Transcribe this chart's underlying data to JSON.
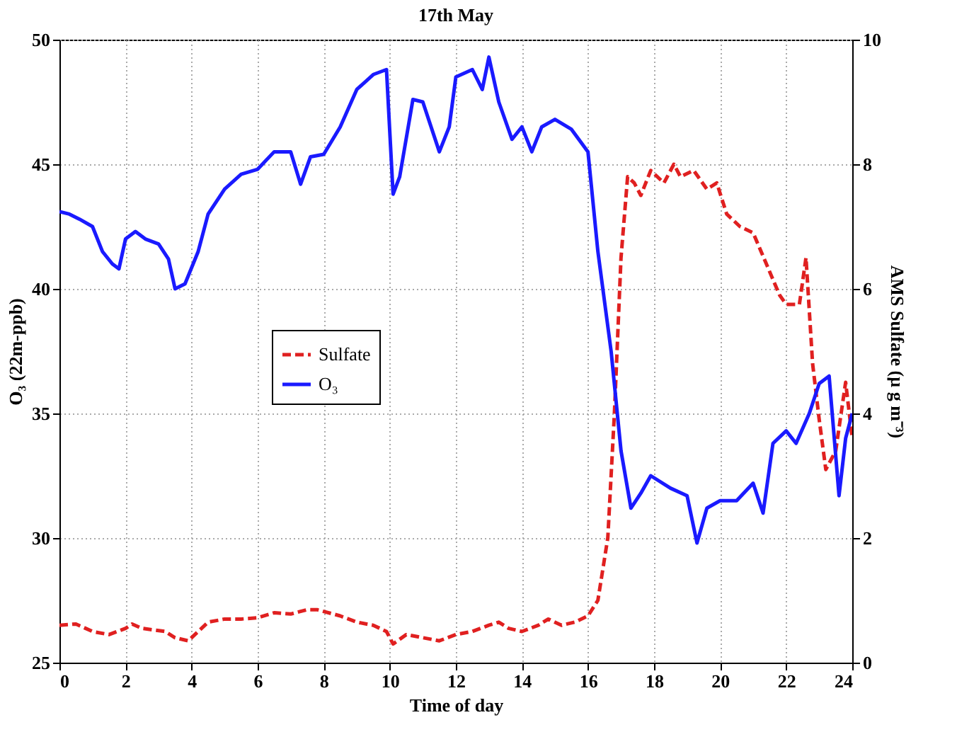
{
  "chart_data": {
    "type": "line",
    "title": "17th May",
    "xlabel": "Time of day",
    "ylabel": "O₃ (22m-ppb)",
    "y2label": "AMS Sulfate (µ g m⁻³)",
    "xlim": [
      0,
      24
    ],
    "xticks": [
      0,
      2,
      4,
      6,
      8,
      10,
      12,
      14,
      16,
      18,
      20,
      22,
      24
    ],
    "ylim": [
      25,
      50
    ],
    "yticks": [
      25,
      30,
      35,
      40,
      45,
      50
    ],
    "y2lim": [
      0,
      10
    ],
    "y2ticks": [
      0,
      2,
      4,
      6,
      8,
      10
    ],
    "grid": true,
    "legend": "left",
    "marker": "none",
    "series": [
      {
        "name": "Sulfate",
        "color": "#e02020",
        "axis": "y2",
        "line_style": "dashed",
        "x": [
          0,
          0.5,
          1,
          1.5,
          2,
          2.2,
          2.5,
          3.2,
          3.5,
          3.9,
          4.5,
          5,
          5.5,
          6,
          6.5,
          7,
          7.5,
          7.8,
          8.5,
          9,
          9.5,
          9.9,
          10.1,
          10.5,
          11,
          11.5,
          12,
          12.5,
          13,
          13.3,
          13.6,
          14,
          14.5,
          14.8,
          15.2,
          15.6,
          16,
          16.3,
          16.6,
          16.8,
          17,
          17.2,
          17.4,
          17.6,
          17.9,
          18.3,
          18.6,
          18.8,
          19.2,
          19.6,
          19.9,
          20.2,
          20.6,
          21,
          21.4,
          21.8,
          22,
          22.4,
          22.6,
          22.8,
          23,
          23.2,
          23.5,
          23.8,
          24
        ],
        "values": [
          0.6,
          0.62,
          0.5,
          0.45,
          0.55,
          0.62,
          0.55,
          0.5,
          0.4,
          0.35,
          0.65,
          0.7,
          0.7,
          0.72,
          0.8,
          0.78,
          0.85,
          0.85,
          0.75,
          0.65,
          0.6,
          0.5,
          0.3,
          0.45,
          0.4,
          0.35,
          0.45,
          0.5,
          0.6,
          0.65,
          0.55,
          0.5,
          0.6,
          0.7,
          0.6,
          0.65,
          0.75,
          1.0,
          2.0,
          4.0,
          6.5,
          7.8,
          7.7,
          7.5,
          7.9,
          7.7,
          8.0,
          7.8,
          7.9,
          7.6,
          7.7,
          7.2,
          7.0,
          6.9,
          6.4,
          5.9,
          5.75,
          5.75,
          6.5,
          4.8,
          3.9,
          3.1,
          3.4,
          4.5,
          3.6
        ]
      },
      {
        "name": "O₃",
        "color": "#1a1aff",
        "axis": "y",
        "line_style": "solid",
        "x": [
          0,
          0.3,
          0.6,
          1,
          1.3,
          1.6,
          1.8,
          2,
          2.3,
          2.6,
          3,
          3.3,
          3.5,
          3.8,
          4.2,
          4.5,
          5,
          5.5,
          6,
          6.5,
          7,
          7.3,
          7.6,
          8,
          8.5,
          9,
          9.5,
          9.9,
          10.1,
          10.3,
          10.7,
          11,
          11.5,
          11.8,
          12,
          12.5,
          12.8,
          13,
          13.3,
          13.7,
          14,
          14.3,
          14.6,
          15,
          15.5,
          16,
          16.3,
          16.7,
          17,
          17.3,
          17.6,
          17.9,
          18.5,
          19,
          19.3,
          19.6,
          20,
          20.5,
          21,
          21.3,
          21.6,
          22,
          22.3,
          22.7,
          23,
          23.3,
          23.6,
          23.8,
          24
        ],
        "values": [
          43.1,
          43.0,
          42.8,
          42.5,
          41.5,
          41.0,
          40.8,
          42.0,
          42.3,
          42.0,
          41.8,
          41.2,
          40.0,
          40.2,
          41.5,
          43.0,
          44.0,
          44.6,
          44.8,
          45.5,
          45.5,
          44.2,
          45.3,
          45.4,
          46.5,
          48.0,
          48.6,
          48.8,
          43.8,
          44.5,
          47.6,
          47.5,
          45.5,
          46.5,
          48.5,
          48.8,
          48.0,
          49.3,
          47.5,
          46.0,
          46.5,
          45.5,
          46.5,
          46.8,
          46.4,
          45.5,
          41.5,
          37.5,
          33.5,
          31.2,
          31.8,
          32.5,
          32.0,
          31.7,
          29.8,
          31.2,
          31.5,
          31.5,
          32.2,
          31.0,
          33.8,
          34.3,
          33.8,
          35.0,
          36.2,
          36.5,
          31.7,
          34.0,
          35.0
        ]
      }
    ]
  }
}
